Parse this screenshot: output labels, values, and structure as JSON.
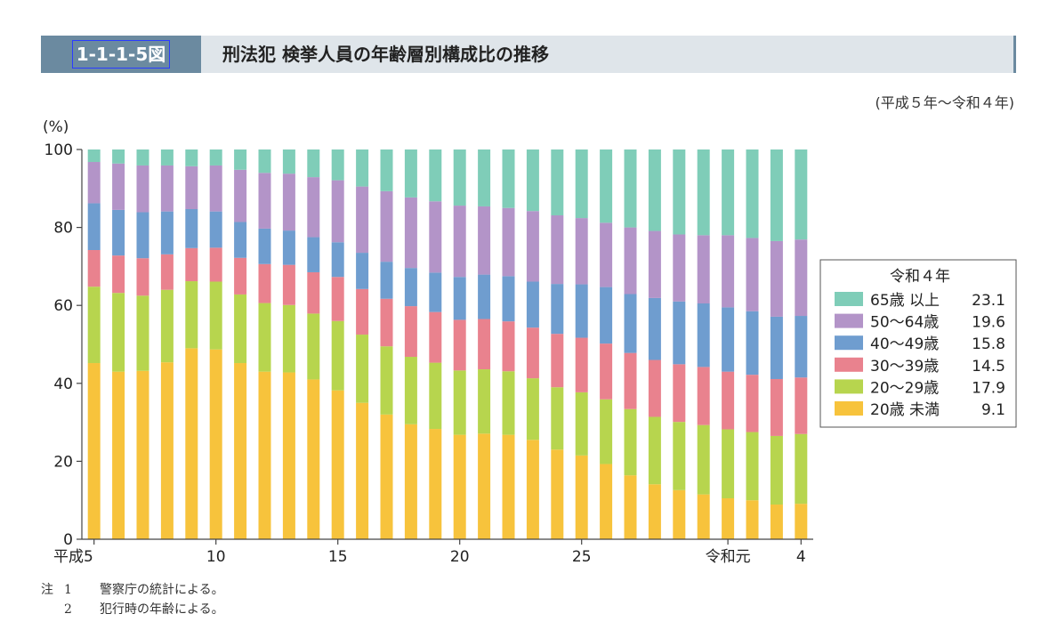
{
  "header": {
    "figure_id": "1-1-1-5図",
    "title": "刑法犯 検挙人員の年齢層別構成比の推移"
  },
  "period": "(平成５年〜令和４年)",
  "notes": {
    "mark": "注",
    "items": [
      {
        "num": "1",
        "text": "警察庁の統計による。"
      },
      {
        "num": "2",
        "text": "犯行時の年齢による。"
      }
    ]
  },
  "colors": {
    "20歳未満": "#f7c33c",
    "20〜29歳": "#b7d54e",
    "30〜39歳": "#e9828e",
    "40〜49歳": "#6f9dcf",
    "50〜64歳": "#b394c8",
    "65歳以上": "#7fcdb8"
  },
  "chart_data": {
    "type": "bar",
    "stacked": true,
    "ylabel": "(%)",
    "ylim": [
      0,
      100
    ],
    "yticks": [
      0,
      20,
      40,
      60,
      80,
      100
    ],
    "x_tick_labels": [
      "平成5",
      "10",
      "15",
      "20",
      "25",
      "令和元",
      "4"
    ],
    "x_tick_index": [
      0,
      5,
      10,
      15,
      20,
      26,
      29
    ],
    "categories": [
      "平成5",
      "平成6",
      "平成7",
      "平成8",
      "平成9",
      "平成10",
      "平成11",
      "平成12",
      "平成13",
      "平成14",
      "平成15",
      "平成16",
      "平成17",
      "平成18",
      "平成19",
      "平成20",
      "平成21",
      "平成22",
      "平成23",
      "平成24",
      "平成25",
      "平成26",
      "平成27",
      "平成28",
      "平成29",
      "平成30",
      "令和元",
      "令和2",
      "令和3",
      "令和4"
    ],
    "series": [
      {
        "name": "20歳未満",
        "values": [
          45.2,
          43.0,
          43.2,
          45.4,
          49.0,
          48.7,
          45.2,
          43.0,
          42.8,
          41.0,
          38.2,
          35.0,
          32.0,
          29.5,
          28.3,
          26.8,
          27.1,
          26.8,
          25.5,
          23.0,
          21.5,
          19.3,
          16.4,
          14.1,
          12.6,
          11.5,
          10.5,
          10.0,
          8.9,
          9.1
        ]
      },
      {
        "name": "20〜29歳",
        "values": [
          19.6,
          20.2,
          19.3,
          18.6,
          17.2,
          17.4,
          17.6,
          17.6,
          17.3,
          16.9,
          17.8,
          17.5,
          17.5,
          17.3,
          17.0,
          16.5,
          16.5,
          16.3,
          15.8,
          16.0,
          16.2,
          16.6,
          17.0,
          17.3,
          17.5,
          17.8,
          17.7,
          17.5,
          17.6,
          17.9
        ]
      },
      {
        "name": "30〜39歳",
        "values": [
          9.4,
          9.6,
          9.6,
          9.1,
          8.5,
          8.7,
          9.4,
          10.0,
          10.3,
          10.6,
          11.3,
          11.7,
          12.2,
          13.0,
          13.0,
          13.0,
          12.9,
          12.8,
          13.0,
          13.7,
          14.0,
          14.3,
          14.4,
          14.6,
          14.8,
          14.9,
          14.8,
          14.7,
          14.6,
          14.5
        ]
      },
      {
        "name": "40〜49歳",
        "values": [
          12.0,
          11.7,
          11.8,
          11.0,
          10.0,
          9.3,
          9.2,
          9.1,
          8.8,
          9.0,
          8.9,
          9.3,
          9.5,
          9.8,
          10.1,
          11.0,
          11.4,
          11.6,
          11.8,
          12.8,
          13.7,
          14.5,
          15.1,
          15.9,
          16.1,
          16.3,
          16.5,
          16.3,
          16.0,
          15.8
        ]
      },
      {
        "name": "50〜64歳",
        "values": [
          10.6,
          11.9,
          12.0,
          11.8,
          11.0,
          11.8,
          13.4,
          14.3,
          14.6,
          15.4,
          15.9,
          17.0,
          18.1,
          18.1,
          18.3,
          18.3,
          17.5,
          17.5,
          18.1,
          17.6,
          17.0,
          16.5,
          17.1,
          17.2,
          17.2,
          17.5,
          18.5,
          18.8,
          19.4,
          19.6
        ]
      },
      {
        "name": "65歳以上",
        "values": [
          3.2,
          3.6,
          4.1,
          4.1,
          4.3,
          4.1,
          5.2,
          6.0,
          6.2,
          7.1,
          7.9,
          9.5,
          10.7,
          12.3,
          13.3,
          14.4,
          14.6,
          15.0,
          15.8,
          16.9,
          17.6,
          18.8,
          20.0,
          20.9,
          21.8,
          22.0,
          22.0,
          22.7,
          23.5,
          23.1
        ]
      }
    ],
    "legend": {
      "title": "令和４年",
      "placement": "right",
      "entries": [
        {
          "label": "65歳 以上",
          "value": "23.1",
          "series": "65歳以上"
        },
        {
          "label": "50〜64歳",
          "value": "19.6",
          "series": "50〜64歳"
        },
        {
          "label": "40〜49歳",
          "value": "15.8",
          "series": "40〜49歳"
        },
        {
          "label": "30〜39歳",
          "value": "14.5",
          "series": "30〜39歳"
        },
        {
          "label": "20〜29歳",
          "value": "17.9",
          "series": "20〜29歳"
        },
        {
          "label": "20歳 未満",
          "value": "9.1",
          "series": "20歳未満"
        }
      ]
    }
  }
}
